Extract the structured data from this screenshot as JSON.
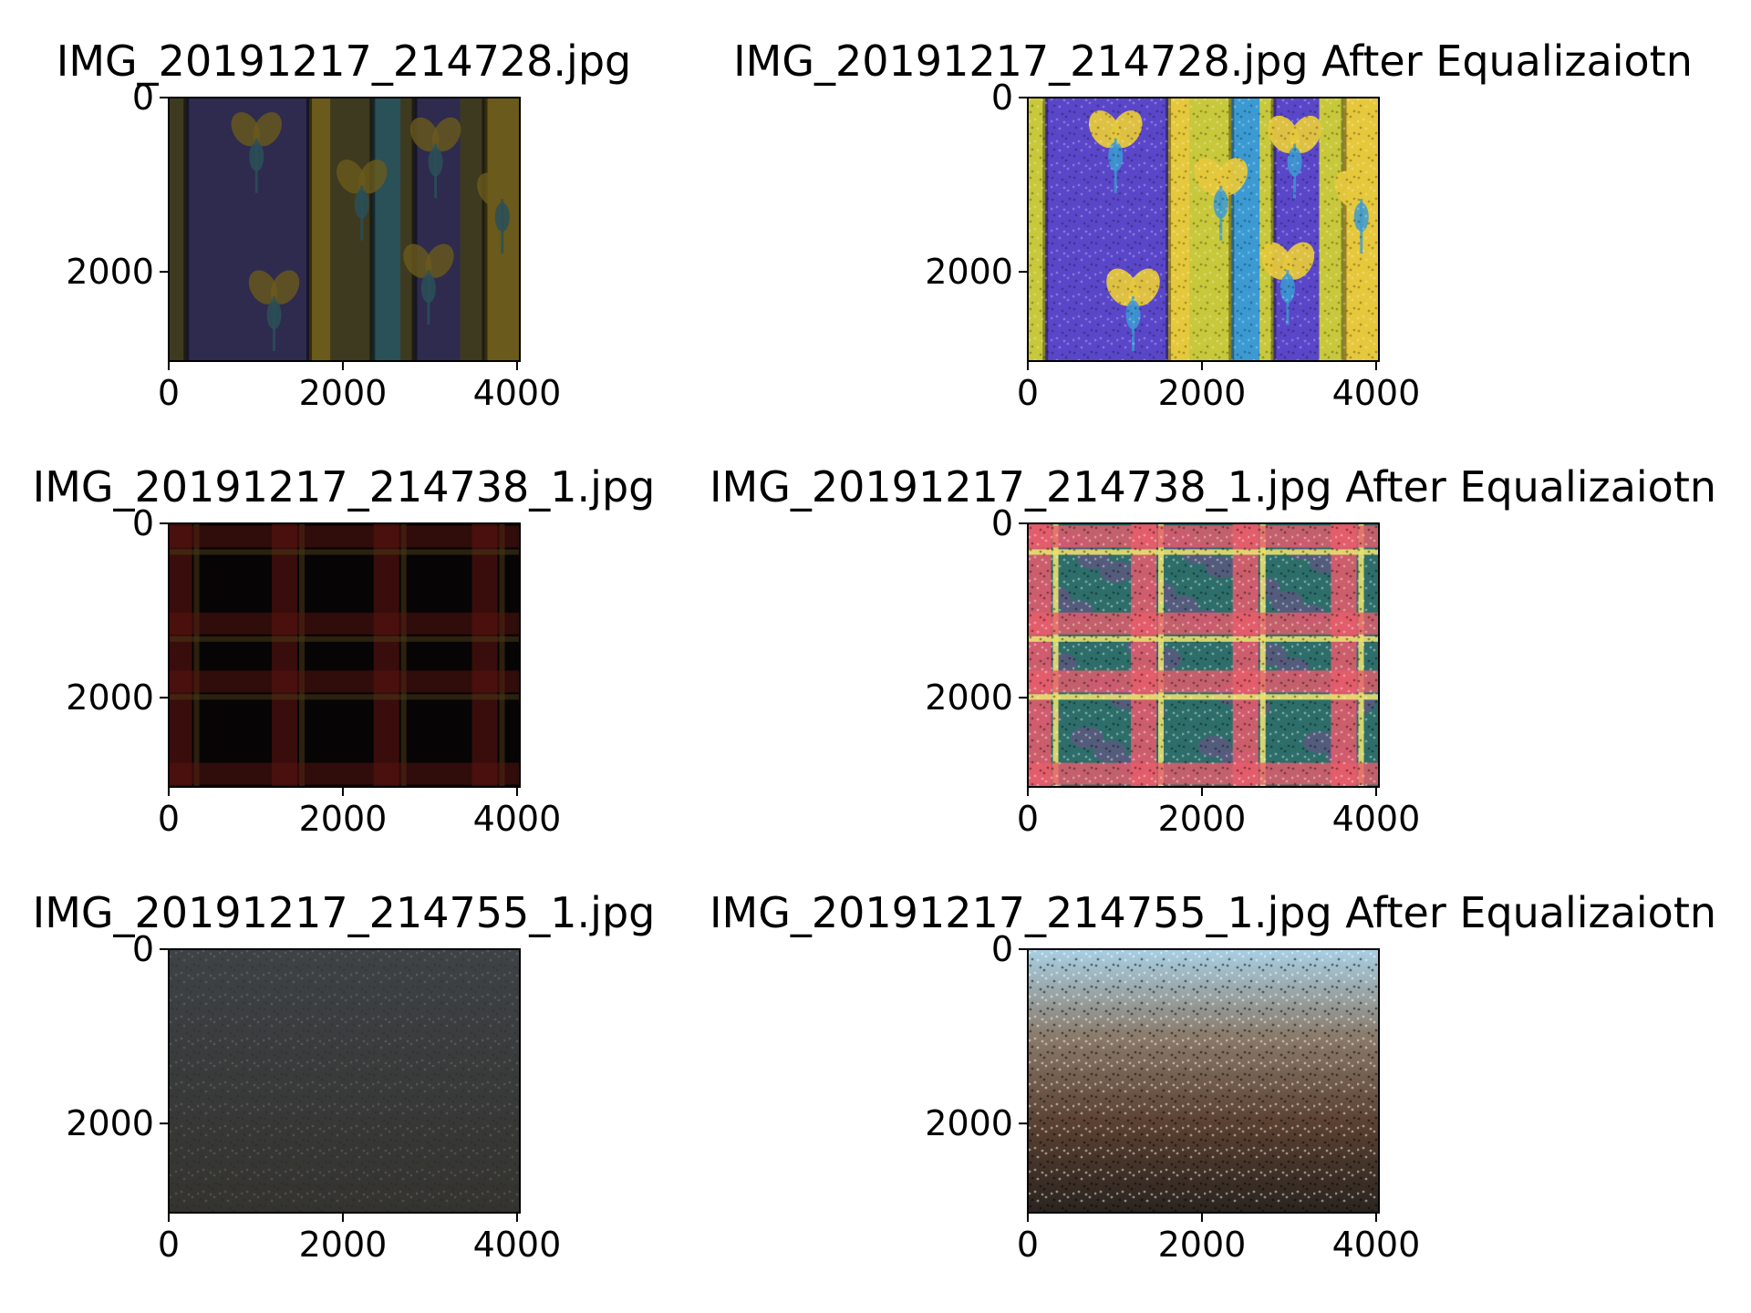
{
  "chart_data": [
    {
      "type": "image",
      "title": "IMG_20191217_214728.jpg",
      "pattern": "floral-stripes",
      "brightness": "dark",
      "palette": [
        "#2e2b4e",
        "#3e3a20",
        "#6a5a1c",
        "#2a5058"
      ],
      "xticks": [
        0,
        2000,
        4000
      ],
      "yticks": [
        0,
        2000
      ],
      "xlim": [
        0,
        4032
      ],
      "ylim": [
        3024,
        0
      ]
    },
    {
      "type": "image",
      "title": "IMG_20191217_214728.jpg After Equalizaiotn",
      "pattern": "floral-stripes",
      "brightness": "equalized",
      "palette": [
        "#5a46c8",
        "#c8c83c",
        "#e6c83c",
        "#3c9ad2"
      ],
      "xticks": [
        0,
        2000,
        4000
      ],
      "yticks": [
        0,
        2000
      ],
      "xlim": [
        0,
        4032
      ],
      "ylim": [
        3024,
        0
      ]
    },
    {
      "type": "image",
      "title": "IMG_20191217_214738_1.jpg",
      "pattern": "plaid",
      "brightness": "dark",
      "palette": [
        "#060404",
        "#5a1410",
        "#4a3a18"
      ],
      "xticks": [
        0,
        2000,
        4000
      ],
      "yticks": [
        0,
        2000
      ],
      "xlim": [
        0,
        4032
      ],
      "ylim": [
        3024,
        0
      ]
    },
    {
      "type": "image",
      "title": "IMG_20191217_214738_1.jpg After Equalizaiotn",
      "pattern": "plaid",
      "brightness": "equalized",
      "palette": [
        "#2e6e6a",
        "#e85c6c",
        "#e8e070",
        "#7a4a8e"
      ],
      "xticks": [
        0,
        2000,
        4000
      ],
      "yticks": [
        0,
        2000
      ],
      "xlim": [
        0,
        4032
      ],
      "ylim": [
        3024,
        0
      ]
    },
    {
      "type": "image",
      "title": "IMG_20191217_214755_1.jpg",
      "pattern": "wall-texture",
      "brightness": "dark",
      "palette": [
        "#3e4246",
        "#34332f"
      ],
      "xticks": [
        0,
        2000,
        4000
      ],
      "yticks": [
        0,
        2000
      ],
      "xlim": [
        0,
        4032
      ],
      "ylim": [
        3024,
        0
      ]
    },
    {
      "type": "image",
      "title": "IMG_20191217_214755_1.jpg After Equalizaiotn",
      "pattern": "wall-texture",
      "brightness": "equalized",
      "palette": [
        "#a8d0e4",
        "#8a7a6a",
        "#5a4030",
        "#2a2420"
      ],
      "xticks": [
        0,
        2000,
        4000
      ],
      "yticks": [
        0,
        2000
      ],
      "xlim": [
        0,
        4032
      ],
      "ylim": [
        3024,
        0
      ]
    }
  ]
}
